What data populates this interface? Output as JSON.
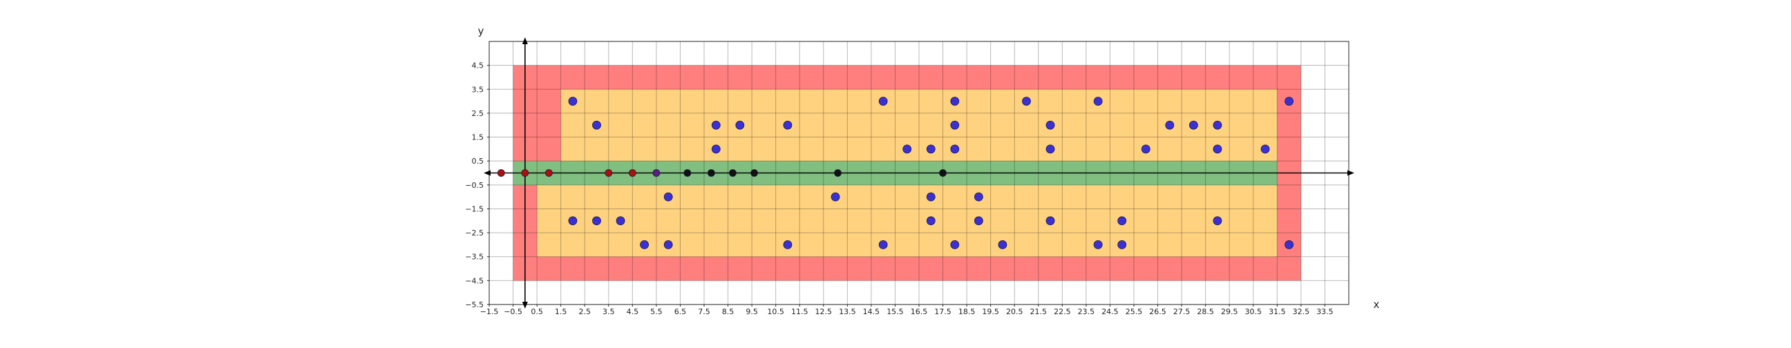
{
  "chart_data": {
    "type": "scatter",
    "title": "",
    "xlabel": "x",
    "ylabel": "y",
    "xlim": [
      -1.5,
      34.5
    ],
    "ylim": [
      -5.5,
      5.5
    ],
    "xticks": [
      -1.5,
      -0.5,
      0.5,
      1.5,
      2.5,
      3.5,
      4.5,
      5.5,
      6.5,
      7.5,
      8.5,
      9.5,
      10.5,
      11.5,
      12.5,
      13.5,
      14.5,
      15.5,
      16.5,
      17.5,
      18.5,
      19.5,
      20.5,
      21.5,
      22.5,
      23.5,
      24.5,
      25.5,
      26.5,
      27.5,
      28.5,
      29.5,
      30.5,
      31.5,
      32.5,
      33.5
    ],
    "xtick_labels": [
      "−1.5",
      "−0.5",
      "0.5",
      "1.5",
      "2.5",
      "3.5",
      "4.5",
      "5.5",
      "6.5",
      "7.5",
      "8.5",
      "9.5",
      "10.5",
      "11.5",
      "12.5",
      "13.5",
      "14.5",
      "15.5",
      "16.5",
      "17.5",
      "18.5",
      "19.5",
      "20.5",
      "21.5",
      "22.5",
      "23.5",
      "24.5",
      "25.5",
      "26.5",
      "27.5",
      "28.5",
      "29.5",
      "30.5",
      "31.5",
      "32.5",
      "33.5"
    ],
    "yticks": [
      4.5,
      3.5,
      2.5,
      1.5,
      0.5,
      -0.5,
      -1.5,
      -2.5,
      -3.5,
      -4.5,
      -5.5
    ],
    "ytick_labels": [
      "4.5",
      "3.5",
      "2.5",
      "1.5",
      "0.5",
      "−0.5",
      "−1.5",
      "−2.5",
      "−3.5",
      "−4.5",
      "−5.5"
    ],
    "grid": true,
    "regions": [
      {
        "color": "#ff7f7f",
        "points": [
          [
            -0.5,
            -4.5
          ],
          [
            32.5,
            -4.5
          ],
          [
            32.5,
            4.5
          ],
          [
            -0.5,
            4.5
          ]
        ]
      },
      {
        "color": "#ffd280",
        "points": [
          [
            1.5,
            3.5
          ],
          [
            31.5,
            3.5
          ],
          [
            31.5,
            -3.5
          ],
          [
            0.5,
            -3.5
          ],
          [
            0.5,
            -0.5
          ],
          [
            -0.5,
            -0.5
          ],
          [
            -0.5,
            0.5
          ],
          [
            1.5,
            0.5
          ]
        ]
      },
      {
        "color": "#80bf80",
        "points": [
          [
            -0.5,
            -0.5
          ],
          [
            31.5,
            -0.5
          ],
          [
            31.5,
            0.5
          ],
          [
            -0.5,
            0.5
          ]
        ]
      }
    ],
    "series": [
      {
        "color": "#3b2fd6",
        "x": [
          2,
          3,
          3,
          2,
          4,
          5,
          6,
          6,
          8,
          8,
          9,
          11,
          11,
          13,
          15,
          15,
          16,
          17,
          17,
          17,
          18,
          18,
          18,
          18,
          19,
          19,
          20,
          21,
          22,
          22,
          22,
          24,
          24,
          25,
          25,
          26,
          27,
          28,
          29,
          29,
          29,
          31,
          32,
          32
        ],
        "y": [
          3,
          2,
          -2,
          -2,
          -2,
          -3,
          -1,
          -3,
          2,
          1,
          2,
          2,
          -3,
          -1,
          3,
          -3,
          1,
          1,
          -1,
          -2,
          3,
          2,
          1,
          -3,
          -1,
          -2,
          -3,
          3,
          2,
          1,
          -2,
          3,
          -3,
          -2,
          -3,
          1,
          2,
          2,
          2,
          1,
          -2,
          1,
          3,
          -3
        ]
      },
      {
        "color": "#aa1010",
        "x": [
          -1,
          0,
          1,
          3.5,
          4.5
        ],
        "y": [
          0,
          0,
          0,
          0,
          0
        ]
      },
      {
        "color": "#5a2080",
        "x": [
          5.5
        ],
        "y": [
          0
        ]
      },
      {
        "color": "#111111",
        "x": [
          6.8,
          7.8,
          8.7,
          9.6,
          13.1,
          17.5
        ],
        "y": [
          0,
          0,
          0,
          0,
          0,
          0
        ]
      }
    ]
  }
}
